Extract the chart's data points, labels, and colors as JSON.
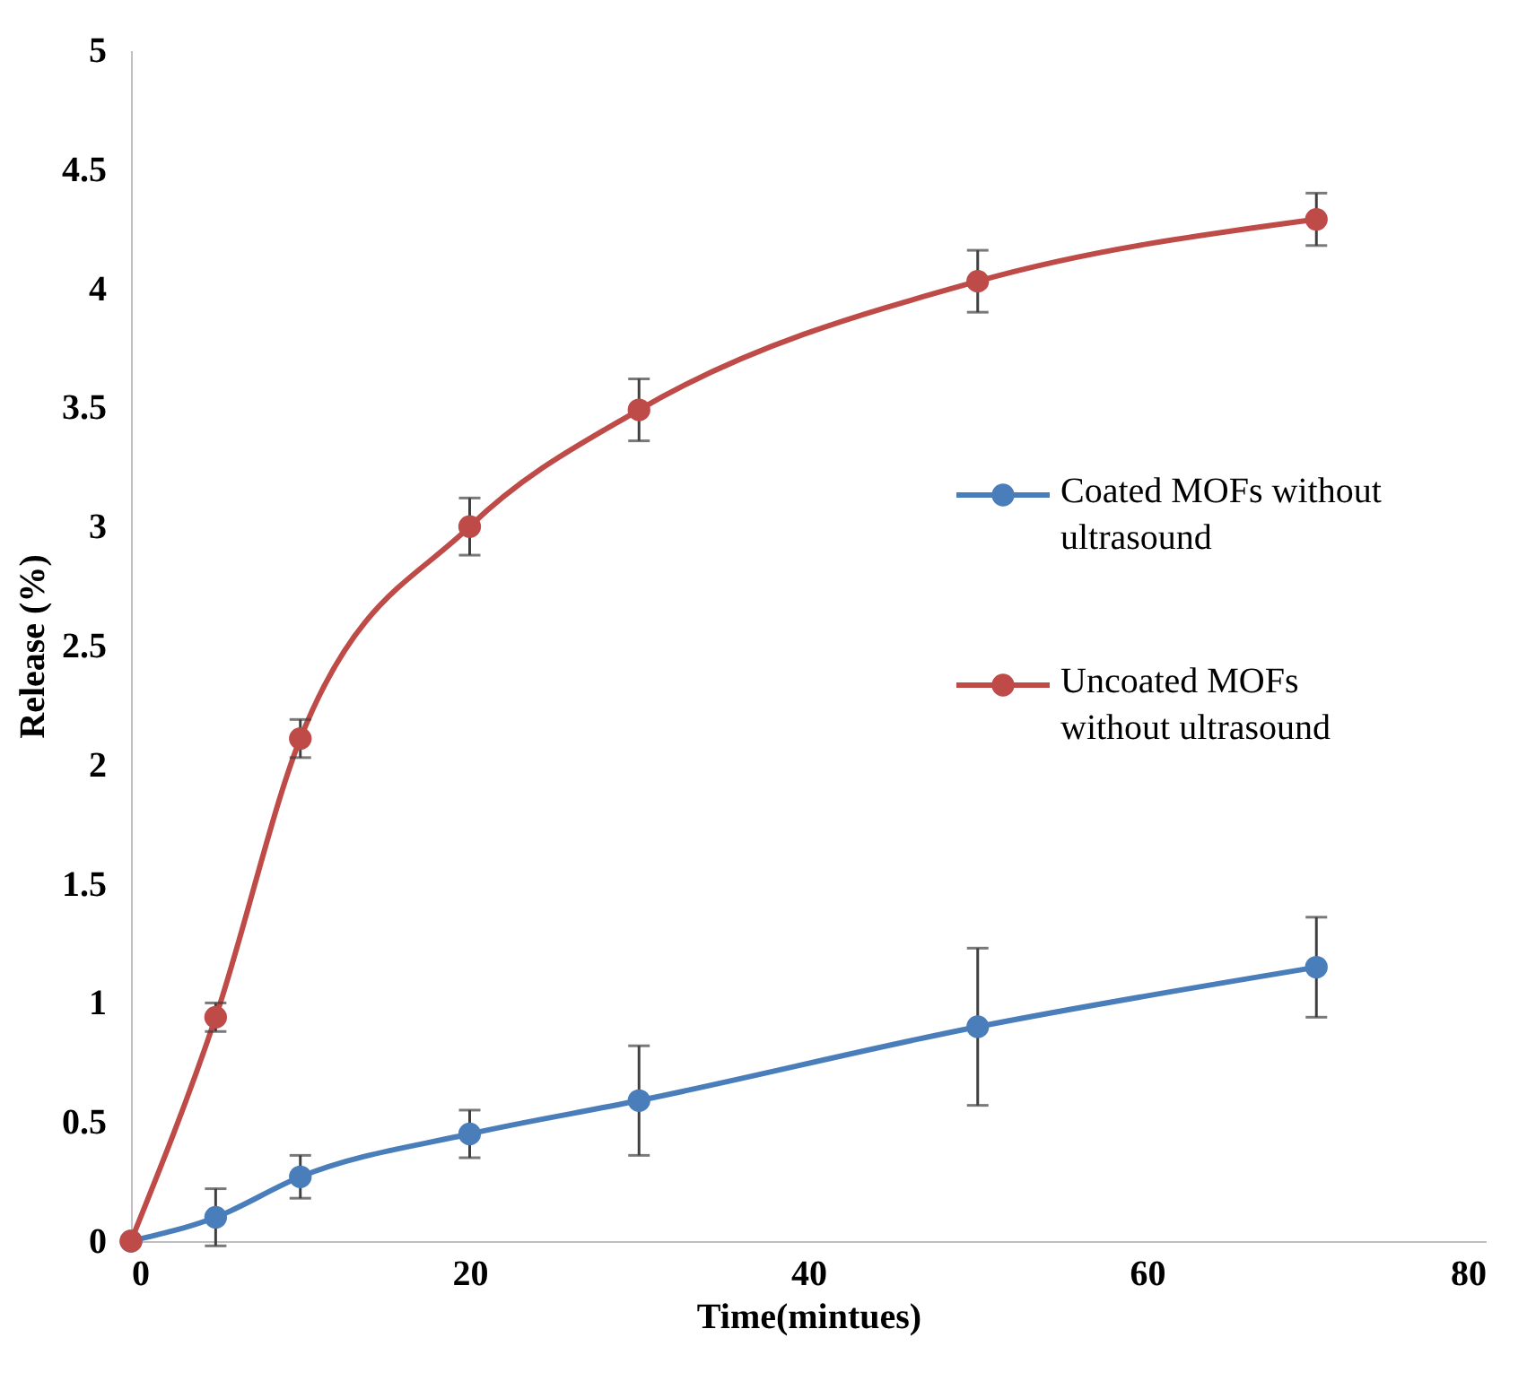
{
  "chart_data": {
    "type": "line",
    "xlabel": "Time(mintues)",
    "ylabel": "Release (%)",
    "xlim": [
      0,
      80
    ],
    "xticks": [
      0,
      20,
      40,
      60,
      80
    ],
    "ylim": [
      0,
      5
    ],
    "yticks": [
      0,
      0.5,
      1,
      1.5,
      2,
      2.5,
      3,
      3.5,
      4,
      4.5,
      5
    ],
    "x": [
      0,
      5,
      10,
      20,
      30,
      50,
      70
    ],
    "series": [
      {
        "name": "Coated MOFs without ultrasound",
        "color": "#4a7ebb",
        "values": [
          0,
          0.1,
          0.27,
          0.45,
          0.59,
          0.9,
          1.15
        ],
        "errors": [
          null,
          0.12,
          0.09,
          0.1,
          0.23,
          0.33,
          0.21
        ]
      },
      {
        "name": "Uncoated MOFs without ultrasound",
        "color": "#be4b48",
        "values": [
          0,
          0.94,
          2.11,
          3.0,
          3.49,
          4.03,
          4.29
        ],
        "errors": [
          null,
          0.06,
          0.08,
          0.12,
          0.13,
          0.13,
          0.11
        ]
      }
    ],
    "marker": "circle",
    "line_style": "solid",
    "grid": false,
    "legend": "right"
  }
}
